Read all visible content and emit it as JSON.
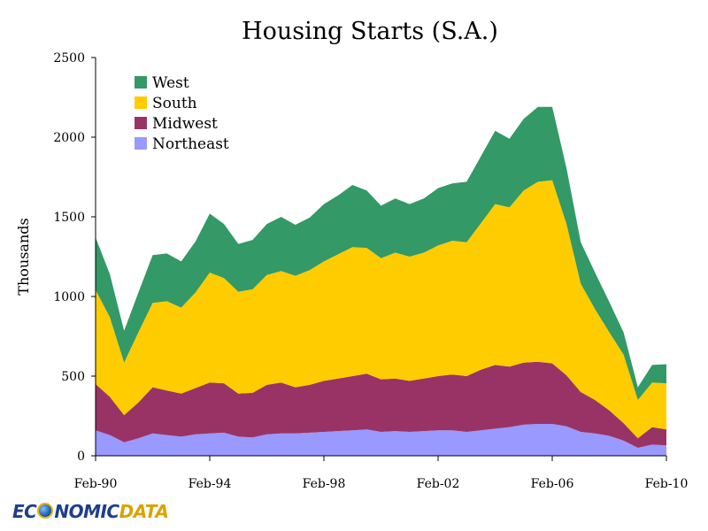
{
  "chart_data": {
    "type": "area",
    "stacked": true,
    "title": "Housing Starts (S.A.)",
    "ylabel": "Thousands",
    "ylim": [
      0,
      2500
    ],
    "yticks": [
      0,
      500,
      1000,
      1500,
      2000,
      2500
    ],
    "xlim": [
      "1990-02",
      "2010-02"
    ],
    "xticks": [
      "Feb-90",
      "Feb-94",
      "Feb-98",
      "Feb-02",
      "Feb-06",
      "Feb-10"
    ],
    "legend_position": "top-left",
    "x": [
      "1990-02",
      "1990-08",
      "1991-02",
      "1991-08",
      "1992-02",
      "1992-08",
      "1993-02",
      "1993-08",
      "1994-02",
      "1994-08",
      "1995-02",
      "1995-08",
      "1996-02",
      "1996-08",
      "1997-02",
      "1997-08",
      "1998-02",
      "1998-08",
      "1999-02",
      "1999-08",
      "2000-02",
      "2000-08",
      "2001-02",
      "2001-08",
      "2002-02",
      "2002-08",
      "2003-02",
      "2003-08",
      "2004-02",
      "2004-08",
      "2005-02",
      "2005-08",
      "2006-02",
      "2006-08",
      "2007-02",
      "2007-08",
      "2008-02",
      "2008-08",
      "2009-02",
      "2009-08",
      "2010-02"
    ],
    "series": [
      {
        "name": "Northeast",
        "color": "#9999ff",
        "values": [
          160,
          130,
          85,
          110,
          140,
          130,
          120,
          135,
          140,
          145,
          120,
          115,
          135,
          140,
          140,
          145,
          150,
          155,
          160,
          165,
          150,
          155,
          150,
          155,
          160,
          160,
          150,
          160,
          170,
          180,
          195,
          200,
          200,
          185,
          150,
          140,
          125,
          95,
          50,
          70,
          65
        ]
      },
      {
        "name": "Midwest",
        "color": "#993366",
        "values": [
          290,
          240,
          170,
          225,
          290,
          280,
          270,
          290,
          320,
          310,
          270,
          280,
          310,
          320,
          290,
          300,
          320,
          330,
          340,
          350,
          330,
          330,
          320,
          330,
          340,
          350,
          350,
          380,
          400,
          380,
          390,
          390,
          380,
          320,
          250,
          210,
          160,
          110,
          60,
          110,
          100
        ]
      },
      {
        "name": "South",
        "color": "#ffcc00",
        "values": [
          590,
          500,
          330,
          440,
          530,
          560,
          540,
          600,
          690,
          660,
          640,
          650,
          690,
          700,
          700,
          720,
          750,
          780,
          810,
          790,
          760,
          790,
          780,
          790,
          820,
          840,
          840,
          920,
          1010,
          1000,
          1080,
          1130,
          1150,
          950,
          680,
          570,
          490,
          430,
          240,
          280,
          290
        ]
      },
      {
        "name": "West",
        "color": "#339966",
        "values": [
          330,
          270,
          200,
          250,
          300,
          300,
          290,
          320,
          370,
          340,
          300,
          310,
          320,
          340,
          320,
          330,
          360,
          370,
          390,
          360,
          330,
          340,
          330,
          340,
          360,
          360,
          380,
          420,
          460,
          430,
          450,
          470,
          460,
          350,
          260,
          230,
          190,
          140,
          80,
          110,
          120
        ]
      }
    ]
  }
}
